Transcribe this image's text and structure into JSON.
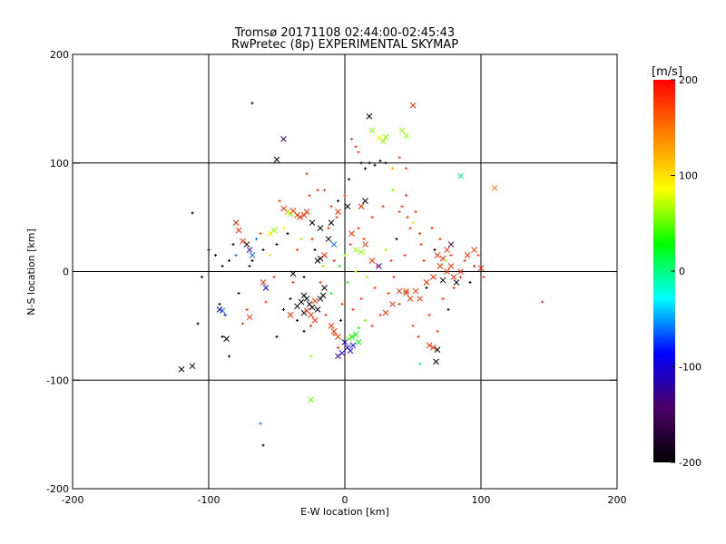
{
  "chart_data": {
    "type": "scatter",
    "title": "Tromsø 20171108 02:44:00-02:45:43",
    "subtitle": "RwPretec (8p) EXPERIMENTAL SKYMAP",
    "xlabel": "E-W location [km]",
    "ylabel": "N-S location [km]",
    "xlim": [
      -200,
      200
    ],
    "ylim": [
      -200,
      200
    ],
    "xticks": [
      "-200",
      "-100",
      "0",
      "100",
      "200"
    ],
    "yticks": [
      "-200",
      "-100",
      "0",
      "100",
      "200"
    ],
    "grid": true,
    "colorbar": {
      "label": "[m/s]",
      "range": [
        -200,
        200
      ],
      "ticks": [
        "200",
        "100",
        "0",
        "-100",
        "-200"
      ],
      "colormap": [
        "#000000",
        "#4b0066",
        "#0000ff",
        "#00ffff",
        "#00ff00",
        "#ffff00",
        "#ff8000",
        "#ff0000"
      ]
    },
    "series": [
      {
        "marker": "x",
        "points": [
          [
            -120,
            -90,
            -200
          ],
          [
            -112,
            -87,
            -200
          ],
          [
            -87,
            -62,
            -200
          ],
          [
            -92,
            -35,
            -120
          ],
          [
            -90,
            -36,
            -60
          ],
          [
            -80,
            45,
            180
          ],
          [
            -78,
            38,
            180
          ],
          [
            -72,
            25,
            -200
          ],
          [
            -70,
            20,
            -120
          ],
          [
            -68,
            15,
            -60
          ],
          [
            -75,
            28,
            180
          ],
          [
            -70,
            -42,
            180
          ],
          [
            -60,
            -10,
            180
          ],
          [
            -58,
            -15,
            -100
          ],
          [
            -55,
            35,
            90
          ],
          [
            -52,
            38,
            60
          ],
          [
            -45,
            58,
            180
          ],
          [
            -42,
            55,
            120
          ],
          [
            -40,
            53,
            60
          ],
          [
            -38,
            56,
            180
          ],
          [
            -35,
            52,
            180
          ],
          [
            -33,
            50,
            180
          ],
          [
            -30,
            52,
            180
          ],
          [
            -28,
            55,
            180
          ],
          [
            -45,
            122,
            -150
          ],
          [
            -50,
            103,
            -200
          ],
          [
            -40,
            -40,
            180
          ],
          [
            -38,
            -2,
            -200
          ],
          [
            -35,
            -32,
            -200
          ],
          [
            -32,
            -28,
            -200
          ],
          [
            -30,
            -22,
            -200
          ],
          [
            -28,
            -25,
            -200
          ],
          [
            -26,
            -30,
            -200
          ],
          [
            -24,
            -33,
            -200
          ],
          [
            -22,
            -27,
            180
          ],
          [
            -20,
            -35,
            -200
          ],
          [
            -18,
            -25,
            -200
          ],
          [
            -16,
            -22,
            -200
          ],
          [
            -25,
            -40,
            180
          ],
          [
            -22,
            -45,
            180
          ],
          [
            -20,
            10,
            -200
          ],
          [
            -18,
            12,
            -200
          ],
          [
            -15,
            15,
            180
          ],
          [
            -10,
            -50,
            180
          ],
          [
            -8,
            -55,
            180
          ],
          [
            -5,
            -60,
            180
          ],
          [
            0,
            -65,
            -100
          ],
          [
            2,
            -70,
            -100
          ],
          [
            4,
            -73,
            -100
          ],
          [
            6,
            -68,
            -100
          ],
          [
            3,
            -62,
            60
          ],
          [
            5,
            -60,
            30
          ],
          [
            8,
            -58,
            30
          ],
          [
            10,
            -65,
            30
          ],
          [
            -2,
            -75,
            -100
          ],
          [
            -5,
            -78,
            -120
          ],
          [
            -25,
            -118,
            50
          ],
          [
            -24,
            45,
            -200
          ],
          [
            -18,
            40,
            -200
          ],
          [
            -10,
            45,
            -200
          ],
          [
            -5,
            55,
            180
          ],
          [
            2,
            60,
            -200
          ],
          [
            12,
            60,
            180
          ],
          [
            15,
            65,
            -200
          ],
          [
            25,
            123,
            90
          ],
          [
            28,
            120,
            60
          ],
          [
            30,
            124,
            60
          ],
          [
            42,
            130,
            60
          ],
          [
            45,
            125,
            60
          ],
          [
            50,
            153,
            180
          ],
          [
            18,
            143,
            -200
          ],
          [
            20,
            130,
            60
          ],
          [
            5,
            35,
            180
          ],
          [
            8,
            20,
            60
          ],
          [
            12,
            18,
            60
          ],
          [
            15,
            25,
            180
          ],
          [
            20,
            10,
            180
          ],
          [
            25,
            5,
            -100
          ],
          [
            40,
            -18,
            180
          ],
          [
            45,
            -20,
            180
          ],
          [
            52,
            -18,
            180
          ],
          [
            55,
            -25,
            180
          ],
          [
            60,
            -10,
            180
          ],
          [
            65,
            -5,
            180
          ],
          [
            70,
            5,
            180
          ],
          [
            72,
            12,
            180
          ],
          [
            75,
            20,
            180
          ],
          [
            78,
            25,
            -150
          ],
          [
            80,
            -5,
            180
          ],
          [
            82,
            -10,
            -200
          ],
          [
            85,
            0,
            180
          ],
          [
            100,
            3,
            180
          ],
          [
            90,
            15,
            180
          ],
          [
            95,
            20,
            180
          ],
          [
            65,
            -70,
            180
          ],
          [
            62,
            -68,
            180
          ],
          [
            67,
            -83,
            -200
          ],
          [
            68,
            -72,
            -200
          ],
          [
            85,
            88,
            0
          ],
          [
            110,
            77,
            150
          ],
          [
            68,
            15,
            180
          ],
          [
            72,
            -8,
            -200
          ],
          [
            75,
            0,
            180
          ],
          [
            78,
            5,
            180
          ],
          [
            -12,
            30,
            -200
          ],
          [
            -8,
            25,
            -60
          ],
          [
            35,
            -30,
            180
          ],
          [
            48,
            -25,
            180
          ],
          [
            30,
            -38,
            180
          ],
          [
            45,
            -18,
            180
          ],
          [
            -30,
            -38,
            -200
          ],
          [
            -28,
            -36,
            180
          ],
          [
            -15,
            -15,
            -200
          ]
        ]
      },
      {
        "marker": "plus",
        "points": [
          [
            -68,
            155,
            -200
          ],
          [
            -62,
            -140,
            -60
          ],
          [
            -60,
            -160,
            -200
          ],
          [
            -108,
            -48,
            -200
          ],
          [
            -112,
            54,
            -200
          ],
          [
            -105,
            -5,
            -200
          ],
          [
            -100,
            20,
            -200
          ],
          [
            -95,
            15,
            -200
          ],
          [
            -90,
            5,
            -200
          ],
          [
            -92,
            -30,
            -200
          ],
          [
            -88,
            -40,
            -100
          ],
          [
            -85,
            10,
            -200
          ],
          [
            -82,
            25,
            -200
          ],
          [
            -80,
            15,
            -60
          ],
          [
            -78,
            -20,
            -200
          ],
          [
            -75,
            -48,
            180
          ],
          [
            -72,
            -35,
            180
          ],
          [
            -70,
            5,
            -200
          ],
          [
            -68,
            10,
            -200
          ],
          [
            -65,
            30,
            -60
          ],
          [
            -62,
            35,
            180
          ],
          [
            -60,
            20,
            -200
          ],
          [
            -58,
            -28,
            180
          ],
          [
            -55,
            15,
            100
          ],
          [
            -52,
            -5,
            180
          ],
          [
            -50,
            25,
            -200
          ],
          [
            -48,
            65,
            180
          ],
          [
            -45,
            40,
            90
          ],
          [
            -42,
            35,
            -200
          ],
          [
            -40,
            -25,
            -200
          ],
          [
            -38,
            -10,
            180
          ],
          [
            -35,
            20,
            180
          ],
          [
            -32,
            30,
            60
          ],
          [
            -30,
            -5,
            -200
          ],
          [
            -28,
            90,
            180
          ],
          [
            -26,
            70,
            180
          ],
          [
            -24,
            30,
            180
          ],
          [
            -22,
            20,
            -200
          ],
          [
            -20,
            75,
            180
          ],
          [
            -18,
            -10,
            180
          ],
          [
            -16,
            5,
            60
          ],
          [
            -14,
            -40,
            180
          ],
          [
            -12,
            40,
            180
          ],
          [
            -10,
            -20,
            30
          ],
          [
            -8,
            10,
            180
          ],
          [
            -6,
            50,
            180
          ],
          [
            -4,
            5,
            30
          ],
          [
            -2,
            -30,
            180
          ],
          [
            0,
            15,
            60
          ],
          [
            2,
            -10,
            30
          ],
          [
            4,
            25,
            180
          ],
          [
            6,
            -35,
            180
          ],
          [
            8,
            0,
            60
          ],
          [
            10,
            40,
            180
          ],
          [
            12,
            -25,
            180
          ],
          [
            14,
            30,
            180
          ],
          [
            16,
            -5,
            60
          ],
          [
            18,
            100,
            -200
          ],
          [
            20,
            50,
            180
          ],
          [
            22,
            -15,
            180
          ],
          [
            24,
            5,
            180
          ],
          [
            26,
            -40,
            180
          ],
          [
            28,
            60,
            180
          ],
          [
            30,
            20,
            60
          ],
          [
            32,
            -20,
            180
          ],
          [
            34,
            10,
            180
          ],
          [
            36,
            -5,
            180
          ],
          [
            38,
            30,
            -200
          ],
          [
            40,
            -30,
            180
          ],
          [
            42,
            60,
            180
          ],
          [
            44,
            15,
            180
          ],
          [
            46,
            50,
            180
          ],
          [
            48,
            40,
            180
          ],
          [
            50,
            -50,
            180
          ],
          [
            52,
            55,
            180
          ],
          [
            54,
            -60,
            180
          ],
          [
            56,
            25,
            180
          ],
          [
            58,
            10,
            180
          ],
          [
            60,
            -15,
            -200
          ],
          [
            62,
            -40,
            180
          ],
          [
            64,
            40,
            180
          ],
          [
            66,
            20,
            -200
          ],
          [
            68,
            -55,
            180
          ],
          [
            70,
            30,
            180
          ],
          [
            72,
            -25,
            180
          ],
          [
            74,
            10,
            60
          ],
          [
            76,
            -35,
            -200
          ],
          [
            78,
            15,
            180
          ],
          [
            80,
            -15,
            180
          ],
          [
            85,
            -5,
            180
          ],
          [
            88,
            10,
            180
          ],
          [
            92,
            -10,
            -200
          ],
          [
            95,
            5,
            180
          ],
          [
            98,
            15,
            180
          ],
          [
            102,
            -5,
            180
          ],
          [
            145,
            -28,
            180
          ],
          [
            5,
            122,
            180
          ],
          [
            8,
            115,
            180
          ],
          [
            10,
            110,
            180
          ],
          [
            12,
            100,
            -200
          ],
          [
            15,
            95,
            -200
          ],
          [
            22,
            98,
            -200
          ],
          [
            26,
            102,
            -200
          ],
          [
            30,
            100,
            -200
          ],
          [
            35,
            95,
            120
          ],
          [
            40,
            105,
            180
          ],
          [
            45,
            95,
            180
          ],
          [
            -15,
            75,
            180
          ],
          [
            -10,
            60,
            180
          ],
          [
            -5,
            65,
            -200
          ],
          [
            0,
            70,
            180
          ],
          [
            3,
            85,
            -200
          ],
          [
            -3,
            -45,
            -200
          ],
          [
            -8,
            -58,
            180
          ],
          [
            -5,
            -70,
            180
          ],
          [
            -35,
            -45,
            -200
          ],
          [
            -45,
            -35,
            -200
          ],
          [
            -25,
            -50,
            180
          ],
          [
            -30,
            -55,
            -200
          ],
          [
            -50,
            -60,
            -200
          ],
          [
            -90,
            -60,
            -200
          ],
          [
            -85,
            -78,
            -200
          ],
          [
            -25,
            -78,
            60
          ],
          [
            10,
            -52,
            30
          ],
          [
            15,
            -45,
            60
          ],
          [
            20,
            -50,
            180
          ],
          [
            55,
            -85,
            0
          ],
          [
            40,
            55,
            180
          ],
          [
            50,
            45,
            100
          ],
          [
            55,
            35,
            180
          ],
          [
            35,
            75,
            60
          ],
          [
            45,
            70,
            180
          ]
        ]
      }
    ]
  }
}
